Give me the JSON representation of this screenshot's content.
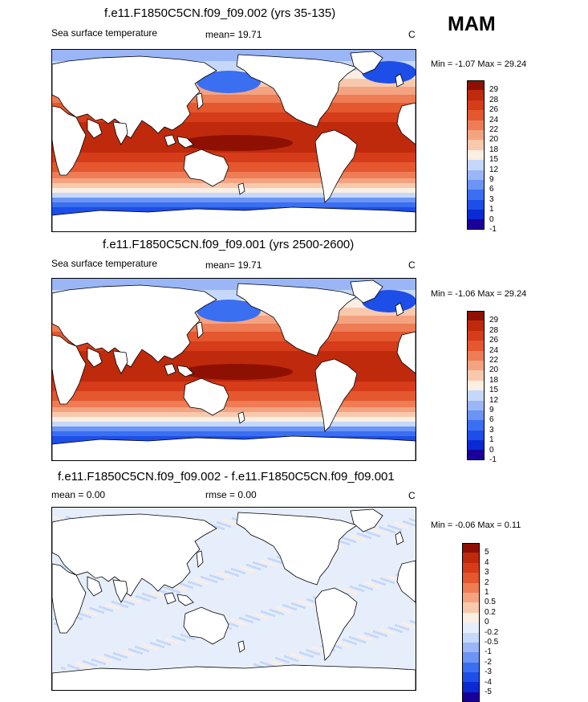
{
  "season": "MAM",
  "colors": {
    "sst": [
      "#1a0099",
      "#0a2ad4",
      "#1e4ee8",
      "#3a6ff2",
      "#6b94f5",
      "#9ab6f7",
      "#c6d8fa",
      "#fbeee3",
      "#f8c9ad",
      "#f4a381",
      "#ee7c55",
      "#e4572f",
      "#d63b1a",
      "#bf2a0c",
      "#8e1002"
    ],
    "diff": [
      "#1a0099",
      "#0a2ad4",
      "#1e4ee8",
      "#3a6ff2",
      "#6b94f5",
      "#9ab6f7",
      "#c6d8fa",
      "#e6eefb",
      "#fbeee3",
      "#f8c9ad",
      "#f4a381",
      "#ee7c55",
      "#e4572f",
      "#d63b1a",
      "#bf2a0c",
      "#8e1002"
    ]
  },
  "panels": [
    {
      "title": "f.e11.F1850C5CN.f09_f09.002 (yrs 35-135)",
      "variable": "Sea surface temperature",
      "mean_label": "mean=",
      "mean_value": "19.71",
      "units": "C",
      "min_label": "Min =",
      "min_value": "-1.07",
      "max_label": "Max =",
      "max_value": "29.24",
      "levels": [
        "29",
        "28",
        "26",
        "24",
        "22",
        "20",
        "18",
        "15",
        "12",
        "9",
        "6",
        "3",
        "1",
        "0",
        "-1"
      ]
    },
    {
      "title": "f.e11.F1850C5CN.f09_f09.001 (yrs 2500-2600)",
      "variable": "Sea surface temperature",
      "mean_label": "mean=",
      "mean_value": "19.71",
      "units": "C",
      "min_label": "Min =",
      "min_value": "-1.06",
      "max_label": "Max =",
      "max_value": "29.24",
      "levels": [
        "29",
        "28",
        "26",
        "24",
        "22",
        "20",
        "18",
        "15",
        "12",
        "9",
        "6",
        "3",
        "1",
        "0",
        "-1"
      ]
    },
    {
      "title": "f.e11.F1850C5CN.f09_f09.002 - f.e11.F1850C5CN.f09_f09.001",
      "mean_label": "mean =",
      "mean_value": "0.00",
      "rmse_label": "rmse =",
      "rmse_value": "0.00",
      "units": "C",
      "min_label": "Min =",
      "min_value": "-0.06",
      "max_label": "Max =",
      "max_value": "0.11",
      "levels": [
        "5",
        "4",
        "3",
        "2",
        "1",
        "0.5",
        "0.2",
        "0",
        "-0.2",
        "-0.5",
        "-1",
        "-2",
        "-3",
        "-4",
        "-5"
      ]
    }
  ]
}
